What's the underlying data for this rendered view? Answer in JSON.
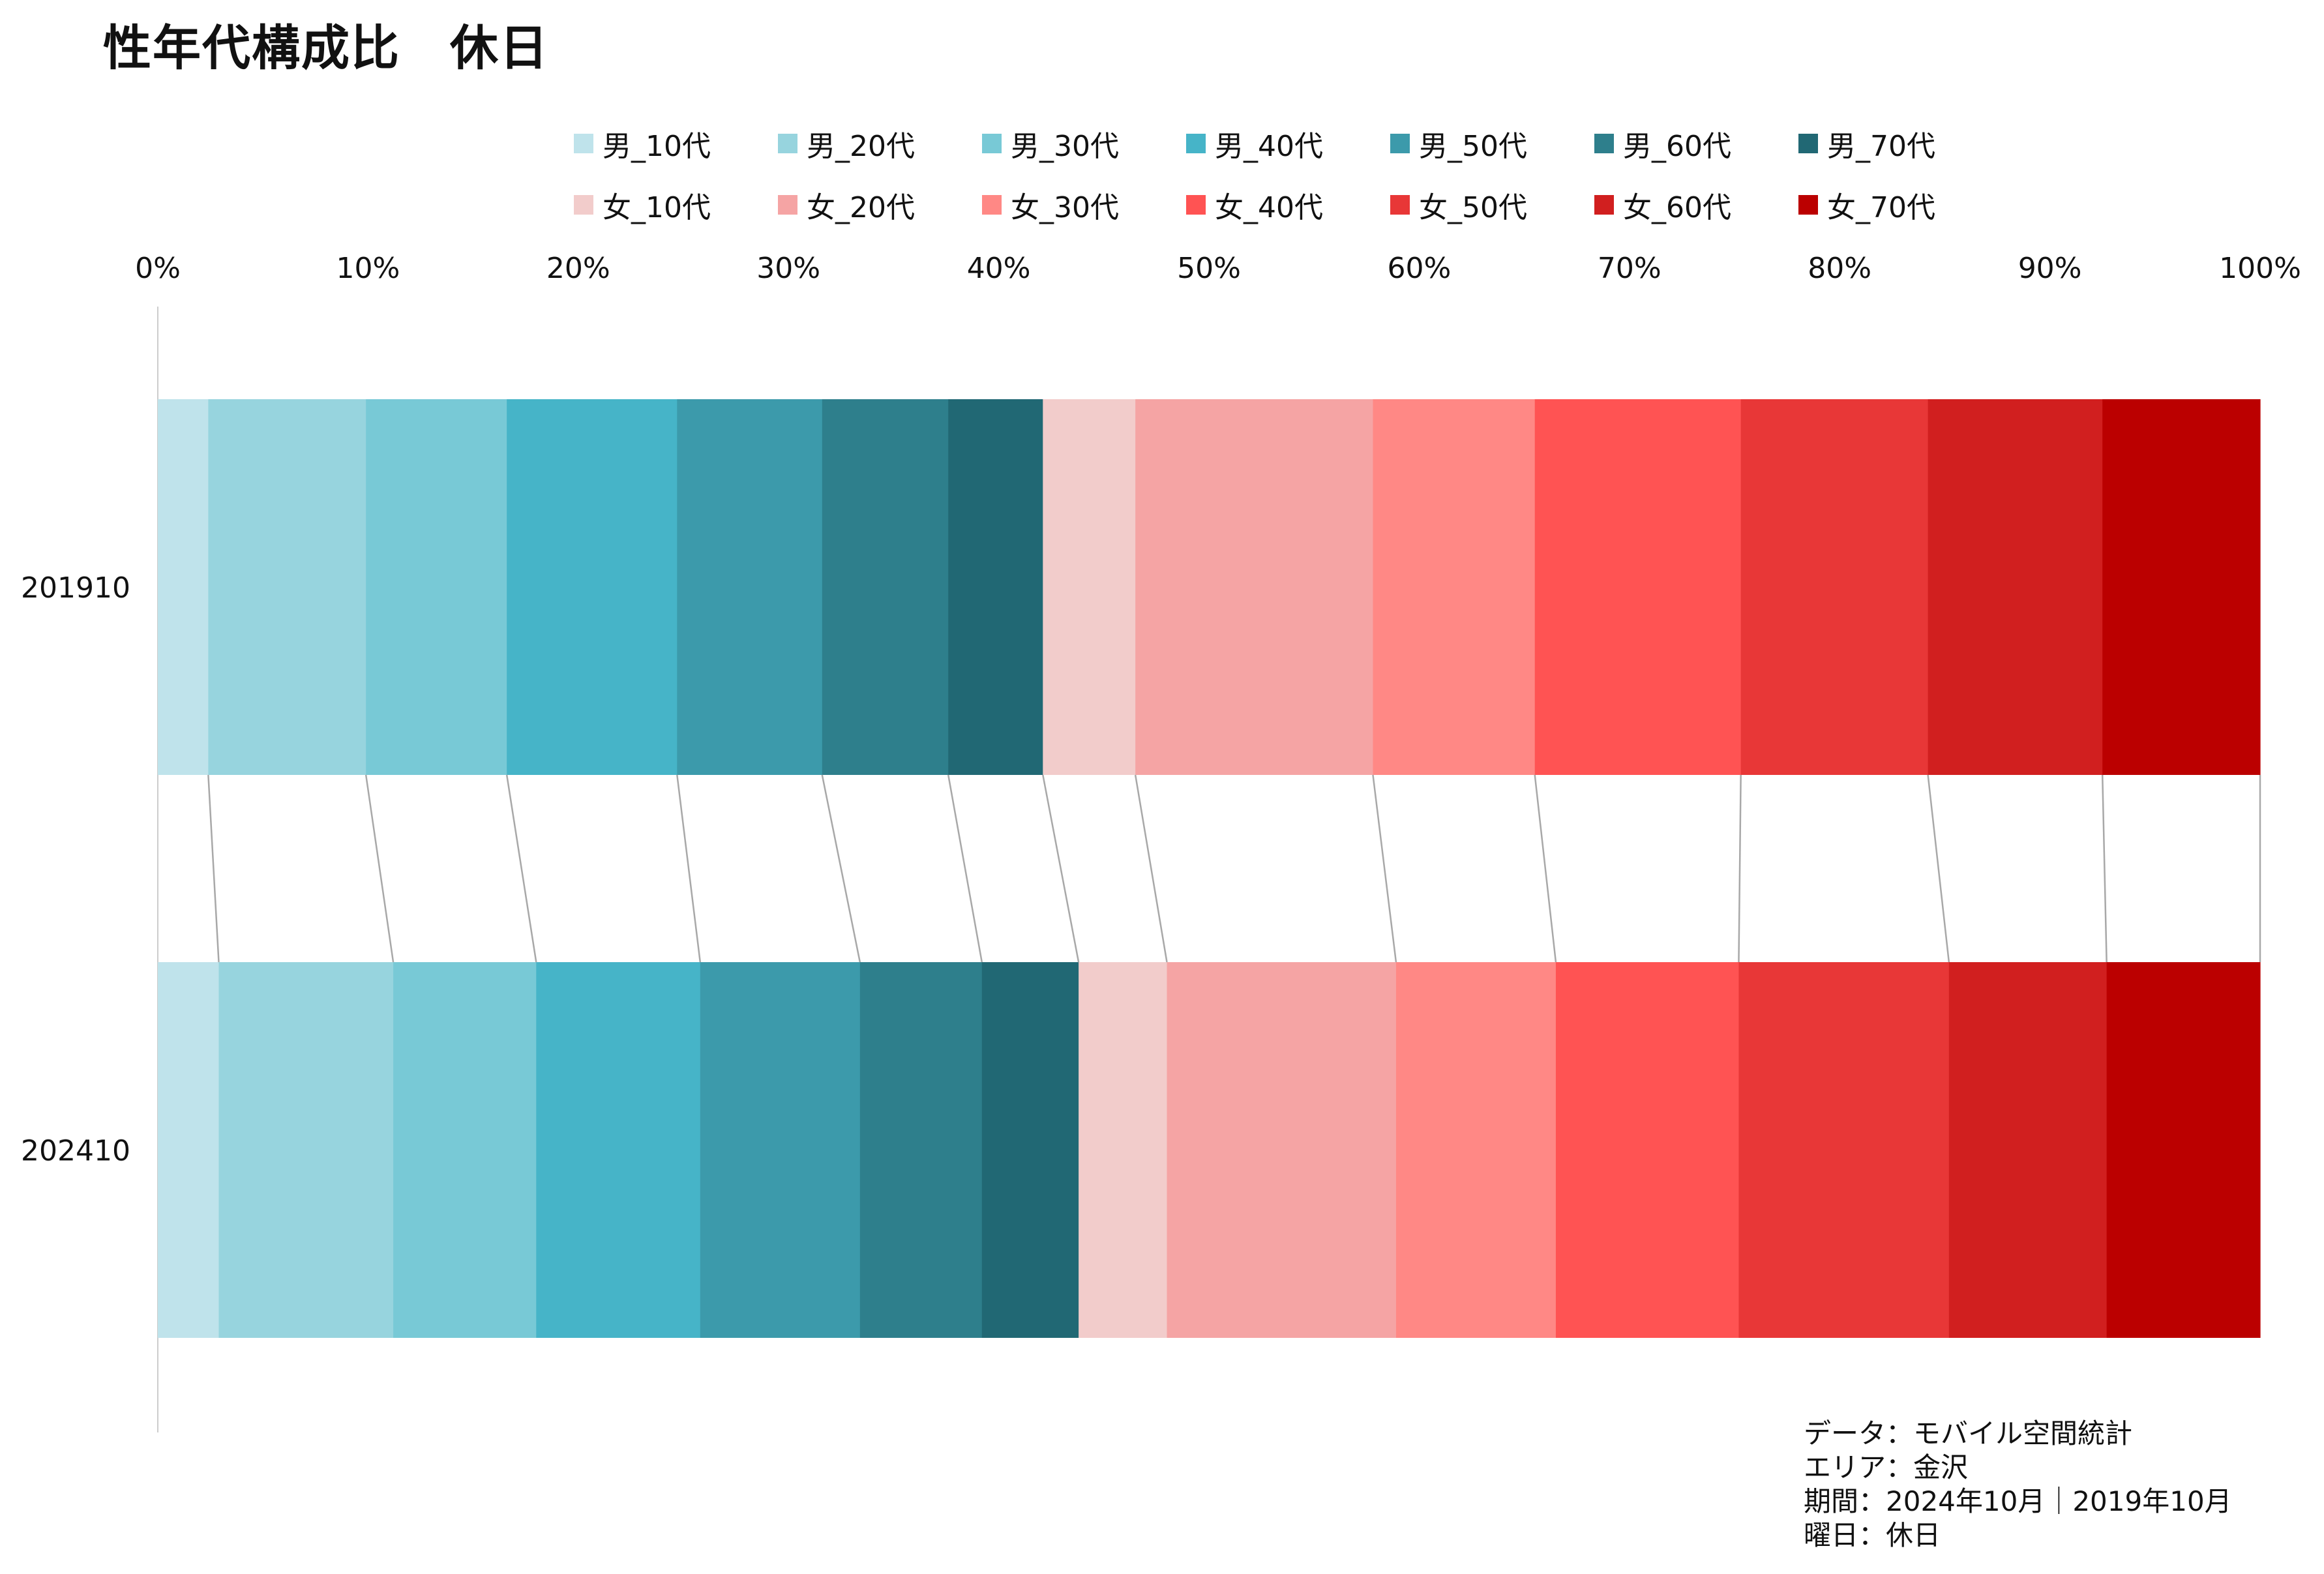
{
  "title": "性年代構成比　休日",
  "legend": [
    {
      "label": "男_10代",
      "color": "#bfe3eb"
    },
    {
      "label": "男_20代",
      "color": "#97d4de"
    },
    {
      "label": "男_30代",
      "color": "#78c9d6"
    },
    {
      "label": "男_40代",
      "color": "#46b4c8"
    },
    {
      "label": "男_50代",
      "color": "#3c9aab"
    },
    {
      "label": "男_60代",
      "color": "#2e7f8c"
    },
    {
      "label": "男_70代",
      "color": "#216874"
    },
    {
      "label": "女_10代",
      "color": "#f2cccb"
    },
    {
      "label": "女_20代",
      "color": "#f5a4a4"
    },
    {
      "label": "女_30代",
      "color": "#ff8885"
    },
    {
      "label": "女_40代",
      "color": "#ff5353"
    },
    {
      "label": "女_50代",
      "color": "#e83737"
    },
    {
      "label": "女_60代",
      "color": "#d11f1f"
    },
    {
      "label": "女_70代",
      "color": "#bb0000"
    }
  ],
  "note": {
    "lines": [
      "データ：モバイル空間統計",
      "エリア：金沢",
      "期間：2024年10月｜2019年10月",
      "曜日：休日"
    ]
  },
  "chart_data": {
    "type": "bar",
    "orientation": "horizontal",
    "stacked": "percent",
    "title": "性年代構成比　休日",
    "categories": [
      "201910",
      "202410"
    ],
    "x_ticks": [
      "0%",
      "10%",
      "20%",
      "30%",
      "40%",
      "50%",
      "60%",
      "70%",
      "80%",
      "90%",
      "100%"
    ],
    "xlim": [
      0,
      100
    ],
    "x_axis_position": "top",
    "legend_position": "top",
    "connector_lines": true,
    "series": [
      {
        "name": "男_10代",
        "values": [
          2.4,
          2.9
        ]
      },
      {
        "name": "男_20代",
        "values": [
          7.5,
          8.3
        ]
      },
      {
        "name": "男_30代",
        "values": [
          6.7,
          6.8
        ]
      },
      {
        "name": "男_40代",
        "values": [
          8.1,
          7.8
        ]
      },
      {
        "name": "男_50代",
        "values": [
          6.9,
          7.6
        ]
      },
      {
        "name": "男_60代",
        "values": [
          6.0,
          5.8
        ]
      },
      {
        "name": "男_70代",
        "values": [
          4.5,
          4.6
        ]
      },
      {
        "name": "女_10代",
        "values": [
          4.4,
          4.2
        ]
      },
      {
        "name": "女_20代",
        "values": [
          11.3,
          10.9
        ]
      },
      {
        "name": "女_30代",
        "values": [
          7.7,
          7.6
        ]
      },
      {
        "name": "女_40代",
        "values": [
          9.8,
          8.7
        ]
      },
      {
        "name": "女_50代",
        "values": [
          8.9,
          10.0
        ]
      },
      {
        "name": "女_60代",
        "values": [
          8.3,
          7.5
        ]
      },
      {
        "name": "女_70代",
        "values": [
          7.5,
          7.3
        ]
      }
    ]
  }
}
